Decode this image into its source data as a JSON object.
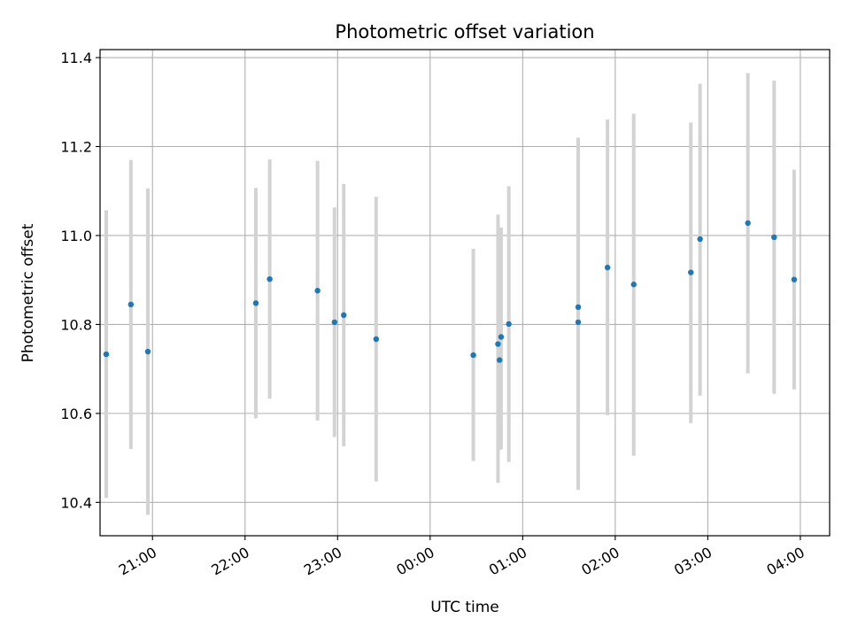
{
  "chart_data": {
    "type": "scatter",
    "title": "Photometric offset variation",
    "xlabel": "UTC time",
    "ylabel": "Photometric offset",
    "x_axis_kind": "time",
    "x_start": "20:00",
    "x_tick_labels": [
      "21:00",
      "22:00",
      "23:00",
      "00:00",
      "01:00",
      "02:00",
      "03:00",
      "04:00"
    ],
    "xlim": [
      "20:26",
      "04:19"
    ],
    "y_ticks": [
      10.4,
      10.6,
      10.8,
      11.0,
      11.2,
      11.4
    ],
    "y_tick_labels": [
      "10.4",
      "10.6",
      "10.8",
      "11.0",
      "11.2",
      "11.4"
    ],
    "ylim": [
      10.325,
      11.418
    ],
    "grid": true,
    "colors": {
      "point": "#1f77b4",
      "errorbar": "#d3d3d3",
      "grid": "#b0b0b0"
    },
    "points": [
      {
        "time": "20:30",
        "y": 10.733,
        "ylow": 10.41,
        "yhigh": 11.057
      },
      {
        "time": "20:46",
        "y": 10.845,
        "ylow": 10.52,
        "yhigh": 11.17
      },
      {
        "time": "20:57",
        "y": 10.739,
        "ylow": 10.372,
        "yhigh": 11.106
      },
      {
        "time": "22:07",
        "y": 10.848,
        "ylow": 10.589,
        "yhigh": 11.107
      },
      {
        "time": "22:16",
        "y": 10.902,
        "ylow": 10.633,
        "yhigh": 11.171
      },
      {
        "time": "22:47",
        "y": 10.876,
        "ylow": 10.584,
        "yhigh": 11.168
      },
      {
        "time": "22:58",
        "y": 10.805,
        "ylow": 10.547,
        "yhigh": 11.063
      },
      {
        "time": "23:04",
        "y": 10.821,
        "ylow": 10.526,
        "yhigh": 11.116
      },
      {
        "time": "23:25",
        "y": 10.767,
        "ylow": 10.447,
        "yhigh": 11.087
      },
      {
        "time": "00:28",
        "y": 10.731,
        "ylow": 10.493,
        "yhigh": 10.97
      },
      {
        "time": "00:44",
        "y": 10.756,
        "ylow": 10.444,
        "yhigh": 11.047
      },
      {
        "time": "00:45",
        "y": 10.72,
        "ylow": 10.518,
        "yhigh": 10.96
      },
      {
        "time": "00:46",
        "y": 10.772,
        "ylow": 10.52,
        "yhigh": 11.018
      },
      {
        "time": "00:51",
        "y": 10.801,
        "ylow": 10.491,
        "yhigh": 11.111
      },
      {
        "time": "01:36",
        "y": 10.839,
        "ylow": 10.458,
        "yhigh": 11.22
      },
      {
        "time": "01:36",
        "y": 10.805,
        "ylow": 10.428,
        "yhigh": 11.18
      },
      {
        "time": "01:55",
        "y": 10.928,
        "ylow": 10.596,
        "yhigh": 11.261
      },
      {
        "time": "02:12",
        "y": 10.89,
        "ylow": 10.505,
        "yhigh": 11.274
      },
      {
        "time": "02:49",
        "y": 10.917,
        "ylow": 10.578,
        "yhigh": 11.254
      },
      {
        "time": "02:55",
        "y": 10.992,
        "ylow": 10.64,
        "yhigh": 11.341
      },
      {
        "time": "03:26",
        "y": 11.028,
        "ylow": 10.69,
        "yhigh": 11.365
      },
      {
        "time": "03:43",
        "y": 10.996,
        "ylow": 10.644,
        "yhigh": 11.348
      },
      {
        "time": "03:56",
        "y": 10.901,
        "ylow": 10.654,
        "yhigh": 11.148
      }
    ]
  }
}
